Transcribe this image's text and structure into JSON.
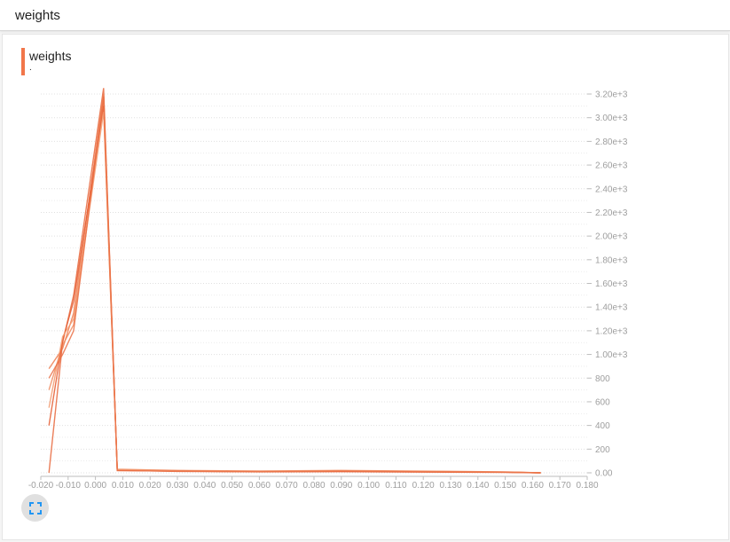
{
  "header": {
    "title": "weights"
  },
  "card": {
    "series_label": "weights",
    "series_sublabel": ".",
    "series_color": "#f1764a"
  },
  "colors": {
    "line_colors": [
      "#e8673c",
      "#ef7b4f",
      "#f08a5e",
      "#e55a2f",
      "#f39a6f",
      "#ea7045"
    ],
    "grid": "#e0e0e0",
    "icon_blue": "#2196f3"
  },
  "controls": {
    "fit_icon": "fit-to-screen-icon"
  },
  "chart_data": {
    "type": "line",
    "title": "weights",
    "x_ticks": [
      "-0.020",
      "-0.010",
      "0.000",
      "0.010",
      "0.020",
      "0.030",
      "0.040",
      "0.050",
      "0.060",
      "0.070",
      "0.080",
      "0.090",
      "0.100",
      "0.110",
      "0.120",
      "0.130",
      "0.140",
      "0.150",
      "0.160",
      "0.170",
      "0.180"
    ],
    "y_ticks": [
      "0.00",
      "200",
      "400",
      "600",
      "800",
      "1.00e+3",
      "1.20e+3",
      "1.40e+3",
      "1.60e+3",
      "1.80e+3",
      "2.00e+3",
      "2.20e+3",
      "2.40e+3",
      "2.60e+3",
      "2.80e+3",
      "3.00e+3",
      "3.20e+3"
    ],
    "xlim": [
      -0.02,
      0.18
    ],
    "ylim": [
      0,
      3200
    ],
    "y_axis_side": "right",
    "grid": true,
    "series": [
      {
        "x": [
          -0.017,
          -0.012,
          -0.008,
          0.003,
          0.008,
          0.03,
          0.06,
          0.09,
          0.12,
          0.15,
          0.163
        ],
        "y": [
          0,
          1100,
          1500,
          3250,
          20,
          15,
          10,
          12,
          8,
          5,
          0
        ]
      },
      {
        "x": [
          -0.017,
          -0.012,
          -0.008,
          0.003,
          0.008,
          0.03,
          0.06,
          0.09,
          0.12,
          0.15,
          0.163
        ],
        "y": [
          880,
          1050,
          1350,
          3200,
          25,
          18,
          12,
          15,
          10,
          6,
          0
        ]
      },
      {
        "x": [
          -0.017,
          -0.012,
          -0.008,
          0.003,
          0.008,
          0.03,
          0.06,
          0.09,
          0.12,
          0.15,
          0.163
        ],
        "y": [
          700,
          1080,
          1250,
          3150,
          30,
          20,
          15,
          20,
          14,
          8,
          0
        ]
      },
      {
        "x": [
          -0.017,
          -0.012,
          -0.008,
          0.003,
          0.008,
          0.03,
          0.06,
          0.09,
          0.12,
          0.15,
          0.163
        ],
        "y": [
          400,
          1120,
          1450,
          3100,
          22,
          12,
          8,
          10,
          6,
          4,
          0
        ]
      },
      {
        "x": [
          -0.017,
          -0.012,
          -0.008,
          0.003,
          0.008,
          0.03,
          0.06,
          0.09,
          0.12,
          0.15,
          0.163
        ],
        "y": [
          550,
          1150,
          1300,
          3050,
          28,
          16,
          10,
          18,
          12,
          6,
          0
        ]
      },
      {
        "x": [
          -0.017,
          -0.012,
          -0.008,
          0.003,
          0.008,
          0.03,
          0.06,
          0.09,
          0.12,
          0.15,
          0.163
        ],
        "y": [
          800,
          1000,
          1200,
          3180,
          18,
          14,
          9,
          14,
          9,
          5,
          0
        ]
      }
    ]
  }
}
